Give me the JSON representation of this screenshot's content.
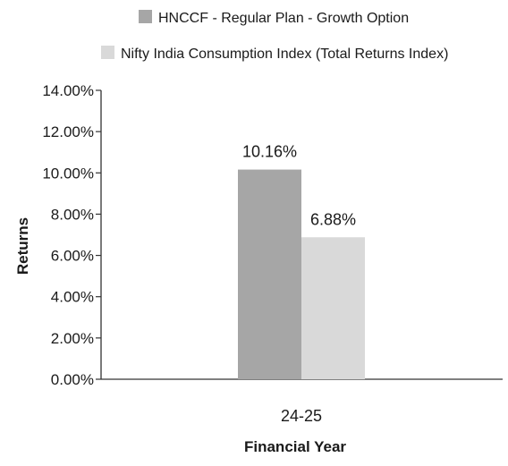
{
  "chart_data": {
    "type": "bar",
    "categories": [
      "24-25"
    ],
    "series": [
      {
        "name": "HNCCF - Regular Plan - Growth Option",
        "values": [
          10.16
        ],
        "color": "#a6a6a6",
        "value_label": "10.16%"
      },
      {
        "name": "Nifty India Consumption Index (Total Returns Index)",
        "values": [
          6.88
        ],
        "color": "#d9d9d9",
        "value_label": "6.88%"
      }
    ],
    "y_ticks": [
      "0.00%",
      "2.00%",
      "4.00%",
      "6.00%",
      "8.00%",
      "10.00%",
      "12.00%",
      "14.00%"
    ],
    "ylim": [
      0,
      14
    ],
    "xlabel": "Financial Year",
    "ylabel": "Returns",
    "grid": false,
    "legend_position": "top"
  }
}
